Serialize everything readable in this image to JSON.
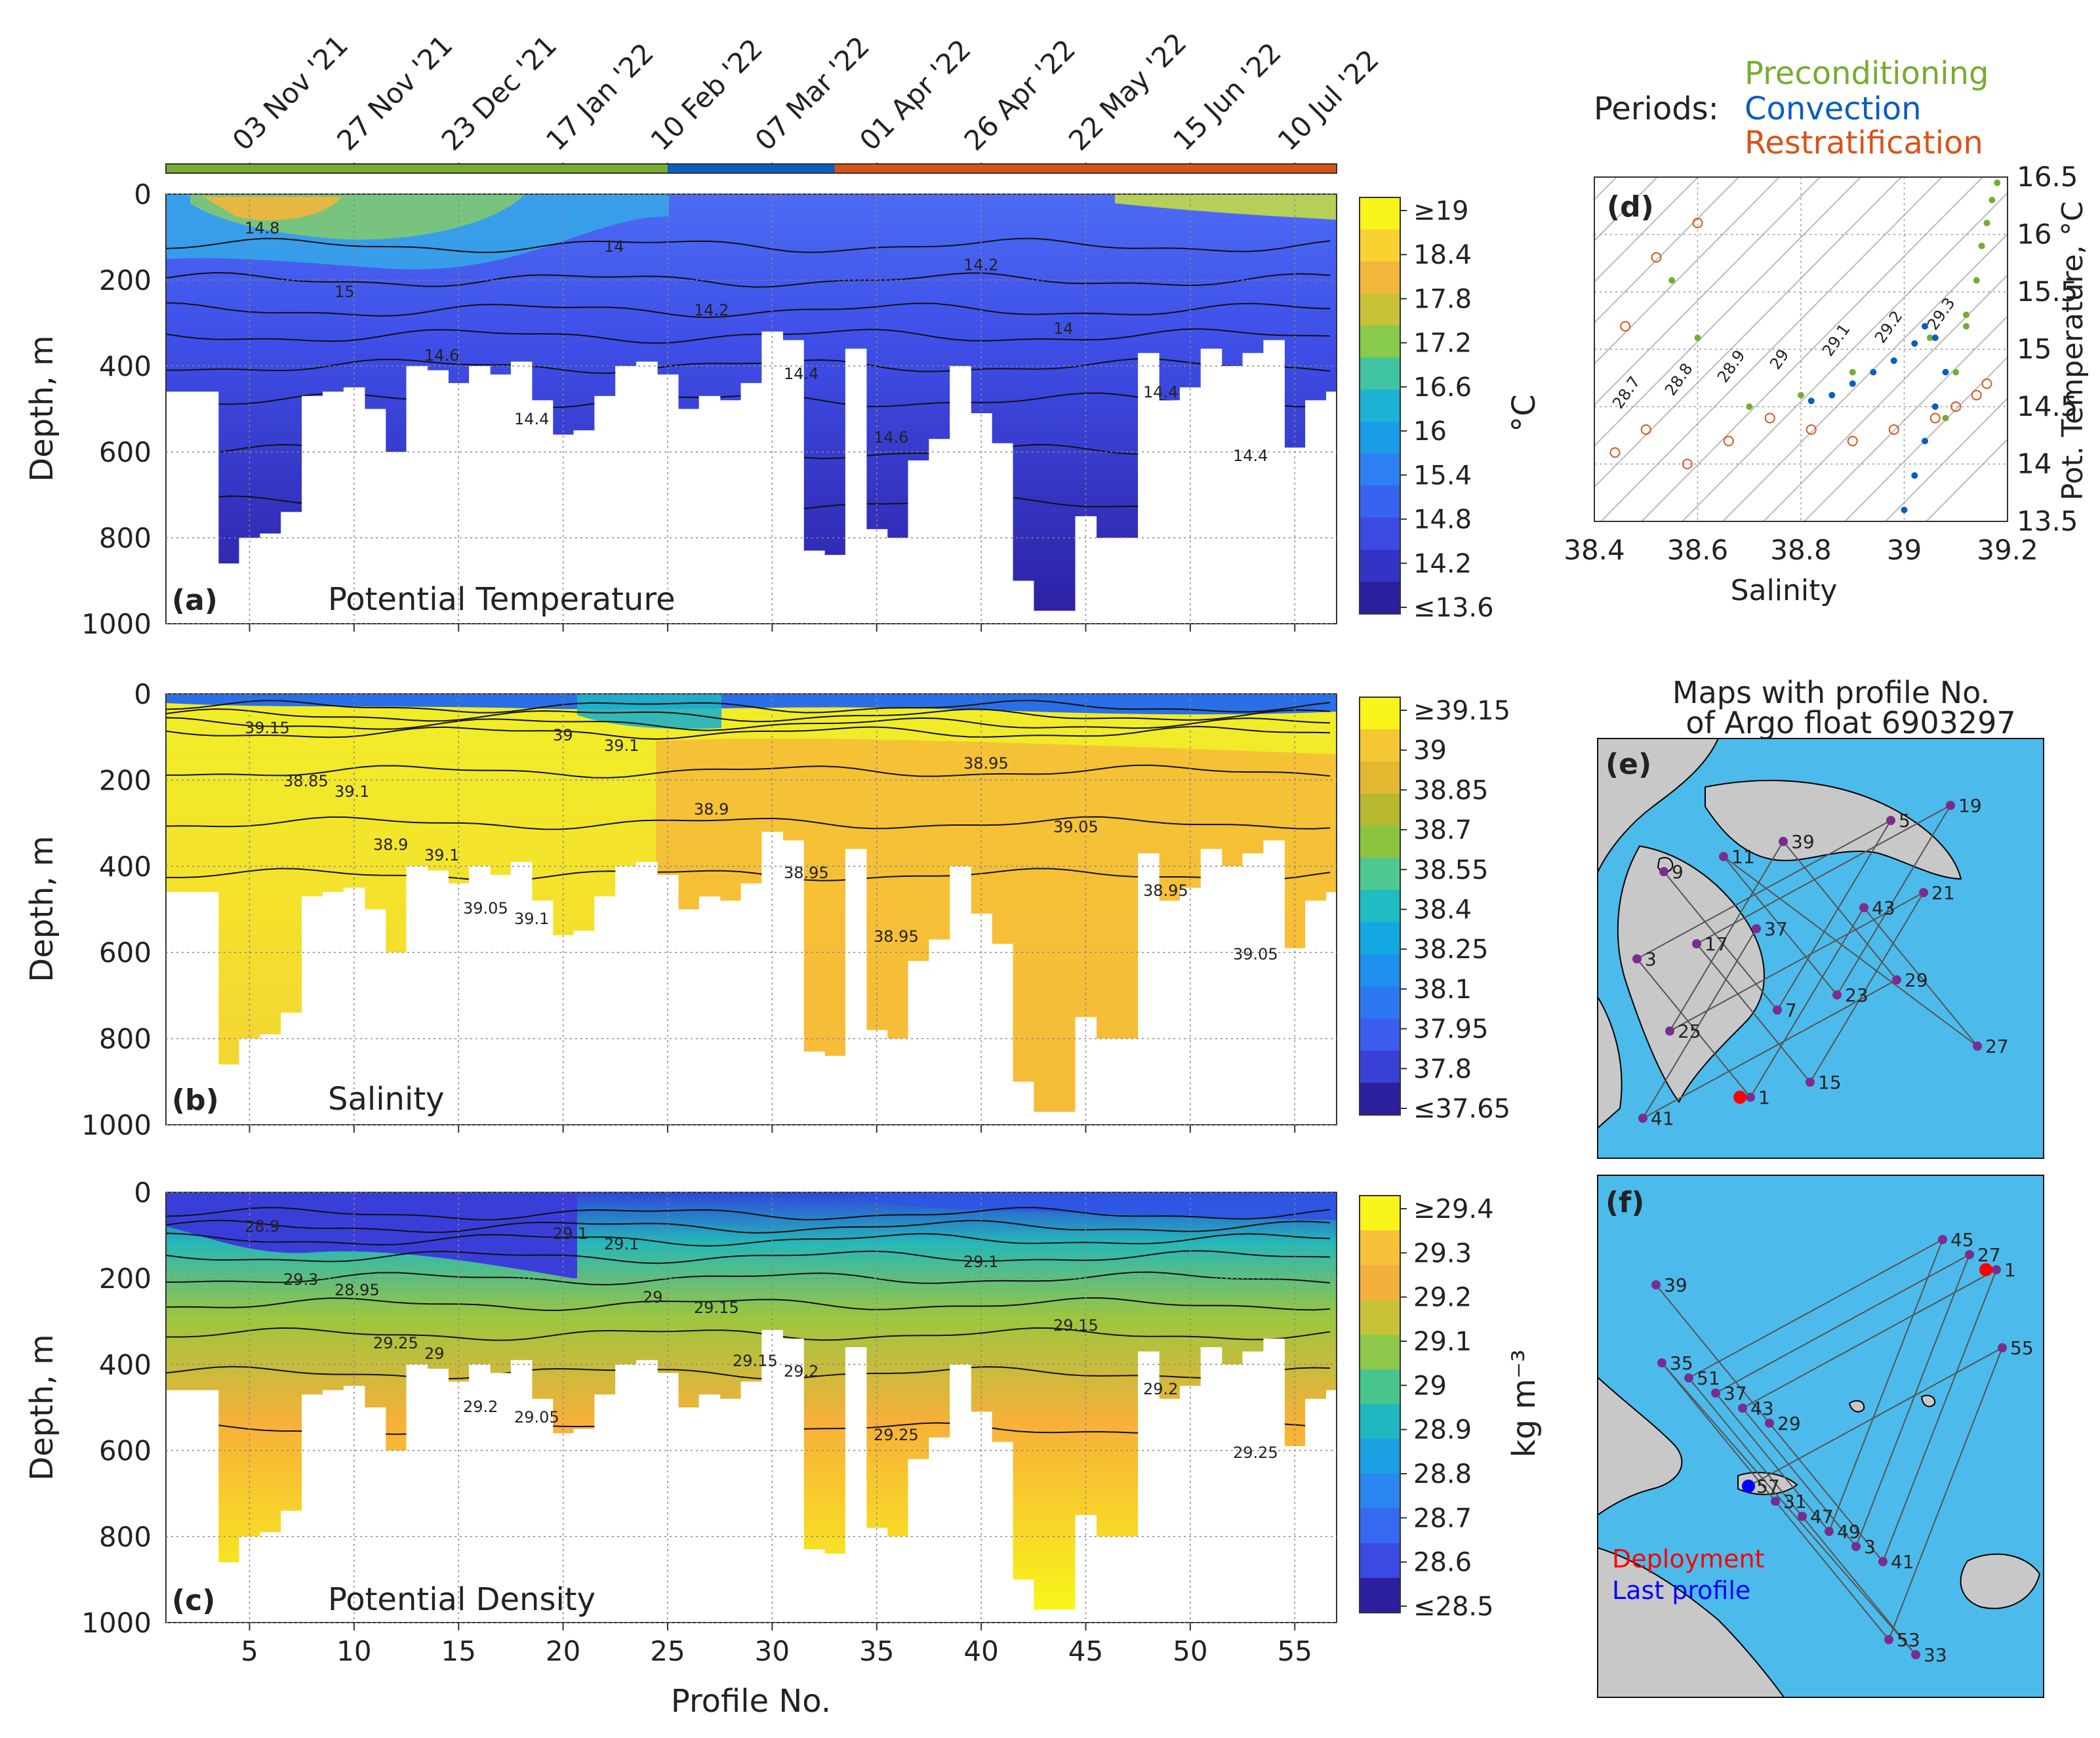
{
  "figure": {
    "periods_label": "Periods:",
    "periods": [
      {
        "name": "Preconditioning",
        "color": "#77ac30"
      },
      {
        "name": "Convection",
        "color": "#0b5dbe"
      },
      {
        "name": "Restratification",
        "color": "#d95319"
      }
    ],
    "dates": [
      "03 Nov '21",
      "27 Nov '21",
      "23 Dec '21",
      "17 Jan '22",
      "10 Feb '22",
      "07 Mar '22",
      "01 Apr '22",
      "26 Apr '22",
      "22 May '22",
      "15 Jun '22",
      "10 Jul '22"
    ],
    "date_profiles": [
      5,
      10,
      15,
      20,
      25,
      30,
      35,
      40,
      45,
      50,
      55
    ],
    "period_breaks_profile": [
      1,
      25,
      33,
      57
    ],
    "colors": {
      "land": "#c8c8c8",
      "sea": "#4cbbeb",
      "track": "#555555",
      "float_point": "#7b2d8e",
      "deployment": "#ff0000",
      "last_profile": "#0000ff"
    }
  },
  "chart_data": [
    {
      "type": "heatmap",
      "panel": "(a)",
      "title": "Potential Temperature",
      "xlabel": "",
      "ylabel": "Depth, m",
      "xlim": [
        1,
        57
      ],
      "ylim": [
        1000,
        0
      ],
      "xticks": [
        5,
        10,
        15,
        20,
        25,
        30,
        35,
        40,
        45,
        50,
        55
      ],
      "yticks": [
        0,
        200,
        400,
        600,
        800,
        1000
      ],
      "colorbar_unit": "°C",
      "colorbar_labels": [
        "≥19",
        "18.4",
        "17.8",
        "17.2",
        "16.6",
        "16",
        "15.4",
        "14.8",
        "14.2",
        "≤13.6"
      ],
      "contour_labels": [
        "14.8",
        "15",
        "14.6",
        "14.4",
        "14",
        "14.2",
        "14.4",
        "14.6",
        "14.2",
        "14",
        "14.4",
        "14.4"
      ],
      "max_depth_per_profile": [
        null,
        null,
        null,
        860,
        800,
        790,
        740,
        470,
        460,
        450,
        500,
        600,
        400,
        410,
        440,
        400,
        420,
        390,
        480,
        560,
        550,
        470,
        400,
        390,
        420,
        500,
        470,
        480,
        440,
        320,
        340,
        830,
        840,
        360,
        780,
        800,
        620,
        570,
        400,
        510,
        580,
        900,
        970,
        970,
        750,
        800,
        800,
        370,
        480,
        450,
        360,
        400,
        370,
        340,
        590,
        480,
        460
      ]
    },
    {
      "type": "heatmap",
      "panel": "(b)",
      "title": "Salinity",
      "xlabel": "",
      "ylabel": "Depth, m",
      "xlim": [
        1,
        57
      ],
      "ylim": [
        1000,
        0
      ],
      "xticks": [
        5,
        10,
        15,
        20,
        25,
        30,
        35,
        40,
        45,
        50,
        55
      ],
      "yticks": [
        0,
        200,
        400,
        600,
        800,
        1000
      ],
      "colorbar_unit": "",
      "colorbar_labels": [
        "≥39.15",
        "39",
        "38.85",
        "38.7",
        "38.55",
        "38.4",
        "38.25",
        "38.1",
        "37.95",
        "37.8",
        "≤37.65"
      ],
      "contour_labels": [
        "39.15",
        "39.1",
        "39.1",
        "39.1",
        "39.1",
        "38.9",
        "38.95",
        "38.95",
        "38.95",
        "39.05",
        "38.95",
        "39.05",
        "38.85",
        "38.9",
        "39.05",
        "39"
      ]
    },
    {
      "type": "heatmap",
      "panel": "(c)",
      "title": "Potential Density",
      "xlabel": "Profile No.",
      "ylabel": "Depth, m",
      "xlim": [
        1,
        57
      ],
      "ylim": [
        1000,
        0
      ],
      "xticks": [
        5,
        10,
        15,
        20,
        25,
        30,
        35,
        40,
        45,
        50,
        55
      ],
      "yticks": [
        0,
        200,
        400,
        600,
        800,
        1000
      ],
      "colorbar_unit": "kg m⁻³",
      "colorbar_labels": [
        "≥29.4",
        "29.3",
        "29.2",
        "29.1",
        "29",
        "28.9",
        "28.8",
        "28.7",
        "28.6",
        "≤28.5"
      ],
      "contour_labels": [
        "28.9",
        "28.95",
        "29",
        "29.05",
        "29.1",
        "29.15",
        "29.2",
        "29.25",
        "29.1",
        "29.15",
        "29.2",
        "29.25",
        "29.3",
        "29.25",
        "29.2",
        "29.1",
        "29",
        "29.15"
      ]
    },
    {
      "type": "scatter",
      "panel": "(d)",
      "title": "",
      "xlabel": "Salinity",
      "ylabel": "Pot. Temperature, °C",
      "xlim": [
        38.4,
        39.2
      ],
      "ylim": [
        13.5,
        16.5
      ],
      "xticks": [
        "38.4",
        "38.6",
        "38.8",
        "39",
        "39.2"
      ],
      "yticks": [
        "13.5",
        "14",
        "14.5",
        "15",
        "15.5",
        "16",
        "16.5"
      ],
      "isopycnal_labels": [
        "28.7",
        "28.8",
        "28.9",
        "29",
        "29.1",
        "29.2",
        "29.3"
      ],
      "series": [
        {
          "name": "Preconditioning",
          "x": [
            39.08,
            39.1,
            39.12,
            39.14,
            39.15,
            39.16,
            39.17,
            39.18,
            39.12,
            39.05,
            38.98,
            38.9,
            38.8,
            38.7,
            38.6,
            38.55
          ],
          "y": [
            14.4,
            14.8,
            15.2,
            15.6,
            15.9,
            16.1,
            16.3,
            16.45,
            15.3,
            15.1,
            14.9,
            14.8,
            14.6,
            14.5,
            15.1,
            15.6
          ]
        },
        {
          "name": "Convection",
          "x": [
            39.0,
            39.02,
            39.04,
            39.06,
            39.08,
            39.06,
            39.04,
            39.02,
            38.98,
            38.94,
            38.9,
            38.86,
            38.82
          ],
          "y": [
            13.6,
            13.9,
            14.2,
            14.5,
            14.8,
            15.1,
            15.2,
            15.05,
            14.9,
            14.8,
            14.7,
            14.6,
            14.55
          ]
        },
        {
          "name": "Restratification",
          "x": [
            38.44,
            38.5,
            38.58,
            38.66,
            38.74,
            38.82,
            38.9,
            38.98,
            39.06,
            39.1,
            39.14,
            39.16,
            38.46,
            38.52,
            38.6
          ],
          "y": [
            14.1,
            14.3,
            14.0,
            14.2,
            14.4,
            14.3,
            14.2,
            14.3,
            14.4,
            14.5,
            14.6,
            14.7,
            15.2,
            15.8,
            16.1
          ]
        }
      ]
    }
  ],
  "maps": {
    "title_line1": "Maps with profile No.",
    "title_line2": "of Argo float 6903297",
    "map_e": {
      "panel": "(e)",
      "labels": [
        "9",
        "7",
        "5",
        "3",
        "1",
        "43",
        "27",
        "11",
        "23",
        "19",
        "17",
        "15",
        "21",
        "25",
        "39",
        "29",
        "41",
        "37"
      ]
    },
    "map_f": {
      "panel": "(f)",
      "labels": [
        "39",
        "29",
        "41",
        "1",
        "43",
        "3",
        "27",
        "37",
        "49",
        "45",
        "51",
        "47",
        "33",
        "35",
        "31",
        "53",
        "55",
        "57"
      ],
      "legend": [
        "Deployment",
        "Last profile"
      ]
    }
  }
}
